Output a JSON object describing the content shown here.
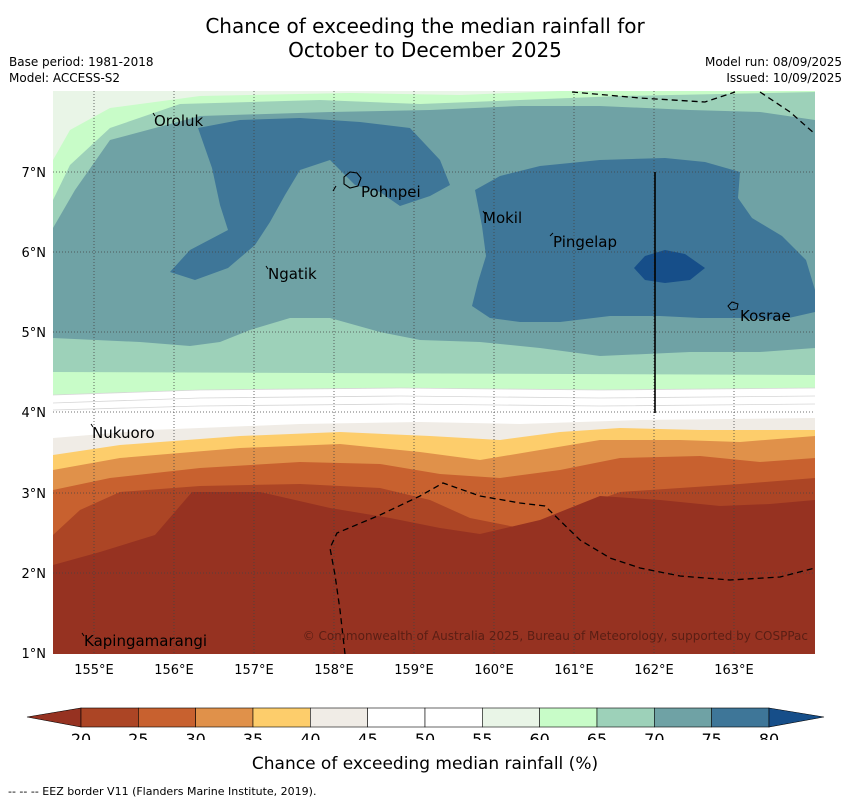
{
  "title_line1": "Chance of exceeding the median rainfall for",
  "title_line2": "October to December 2025",
  "base_period": "Base period: 1981-2018",
  "model": "Model: ACCESS-S2",
  "model_run": "Model run: 08/09/2025",
  "issued": "Issued: 10/09/2025",
  "copyright": "© Commonwealth of Australia 2025, Bureau of Meteorology, supported by COSPPac",
  "colorbar_label": "Chance of exceeding median rainfall (%)",
  "footnote": "--  --  -- EEZ border V11 (Flanders Marine Institute, 2019).",
  "x_ticks": [
    "155°E",
    "156°E",
    "157°E",
    "158°E",
    "159°E",
    "160°E",
    "161°E",
    "162°E",
    "163°E"
  ],
  "y_ticks": [
    "7°N",
    "6°N",
    "5°N",
    "4°N",
    "3°N",
    "2°N",
    "1°N"
  ],
  "islands": [
    {
      "name": "Oroluk"
    },
    {
      "name": "Pohnpei"
    },
    {
      "name": "Mokil"
    },
    {
      "name": "Pingelap"
    },
    {
      "name": "Ngatik"
    },
    {
      "name": "Kosrae"
    },
    {
      "name": "Nukuoro"
    },
    {
      "name": "Kapingamarangi"
    }
  ],
  "colorbar": {
    "ticks": [
      "20",
      "25",
      "30",
      "35",
      "40",
      "45",
      "50",
      "55",
      "60",
      "65",
      "70",
      "75",
      "80"
    ],
    "colors": [
      "#ac4525",
      "#c8612f",
      "#e0914a",
      "#fdcd6b",
      "#f0ece6",
      "#ffffff",
      "#ffffff",
      "#e9f5e7",
      "#c8fcc8",
      "#9dd1b9",
      "#6fa2a5",
      "#3e7698"
    ],
    "under_color": "#963221",
    "over_color": "#164e89"
  },
  "colors": {
    "brown": "#963221",
    "dark_blue": "#164e89"
  }
}
